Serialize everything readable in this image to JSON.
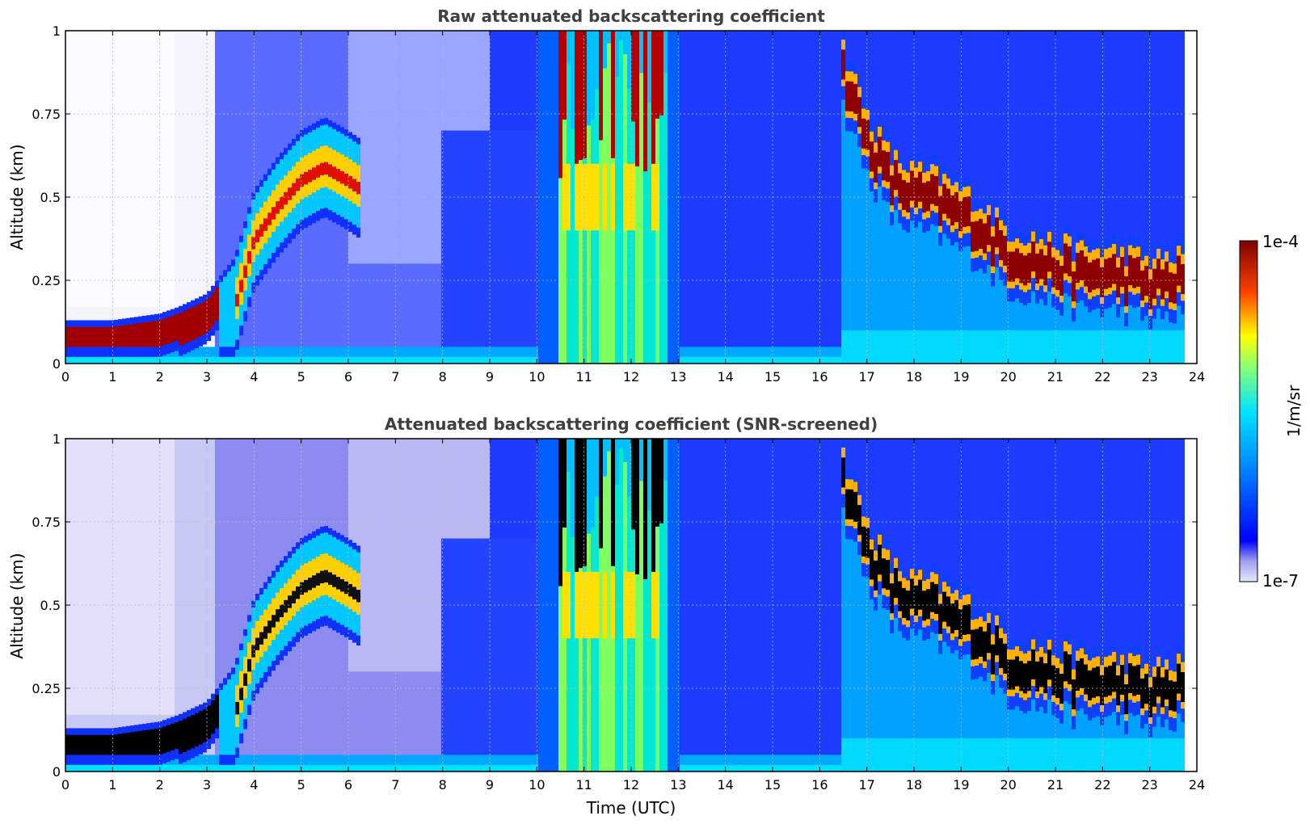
{
  "chart_data": [
    {
      "type": "heatmap",
      "title": "Raw attenuated backscattering coefficient",
      "xlabel": "",
      "ylabel": "Altitude (km)",
      "xlim": [
        0,
        24
      ],
      "ylim": [
        0,
        1
      ],
      "x_ticks": [
        "0",
        "1",
        "2",
        "3",
        "4",
        "5",
        "6",
        "7",
        "8",
        "9",
        "10",
        "11",
        "12",
        "13",
        "14",
        "15",
        "16",
        "17",
        "18",
        "19",
        "20",
        "21",
        "22",
        "23",
        "24"
      ],
      "y_ticks": [
        "0",
        "0.25",
        "0.5",
        "0.75",
        "1"
      ],
      "grid": true,
      "cloud_layer_top_km": {
        "x": [
          0,
          1,
          2,
          2.4,
          2.7,
          3.0,
          3.6,
          4.0,
          4.5,
          5.0,
          5.5,
          6.0,
          6.3
        ],
        "y": [
          0.11,
          0.11,
          0.13,
          0.15,
          0.17,
          0.19,
          0.3,
          0.5,
          0.6,
          0.68,
          0.72,
          0.68,
          0.65
        ]
      },
      "cloud_layer_upper_km": {
        "x": [
          16.5,
          17,
          17.5,
          18,
          18.5,
          19,
          19.5,
          20,
          20.5,
          21,
          21.5,
          22,
          22.5,
          23,
          23.5,
          23.8
        ],
        "y": [
          0.95,
          0.75,
          0.62,
          0.58,
          0.56,
          0.52,
          0.47,
          0.4,
          0.38,
          0.36,
          0.34,
          0.34,
          0.33,
          0.31,
          0.32,
          0.32
        ]
      },
      "convective_zone_utc": [
        10.5,
        12.5
      ]
    },
    {
      "type": "heatmap",
      "title": "Attenuated backscattering coefficient (SNR-screened)",
      "xlabel": "Time (UTC)",
      "ylabel": "Altitude (km)",
      "xlim": [
        0,
        24
      ],
      "ylim": [
        0,
        1
      ],
      "x_ticks": [
        "0",
        "1",
        "2",
        "3",
        "4",
        "5",
        "6",
        "7",
        "8",
        "9",
        "10",
        "11",
        "12",
        "13",
        "14",
        "15",
        "16",
        "17",
        "18",
        "19",
        "20",
        "21",
        "22",
        "23",
        "24"
      ],
      "y_ticks": [
        "0",
        "0.25",
        "0.5",
        "0.75",
        "1"
      ],
      "grid": true
    }
  ],
  "colorbar": {
    "label": "1/m/sr",
    "max_label": "1e-4",
    "min_label": "1e-7",
    "scale": "log",
    "range": [
      1e-07,
      0.0001
    ]
  }
}
